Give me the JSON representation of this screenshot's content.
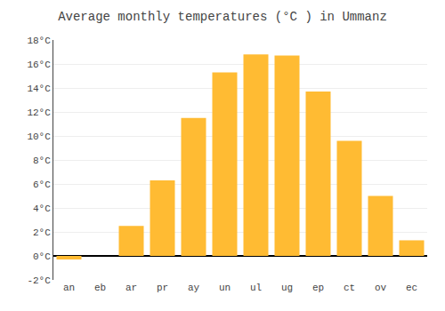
{
  "chart_data": {
    "type": "bar",
    "title": "Average monthly temperatures (°C ) in Ummanz",
    "categories": [
      "an",
      "eb",
      "ar",
      "pr",
      "ay",
      "un",
      "ul",
      "ug",
      "ep",
      "ct",
      "ov",
      "ec"
    ],
    "values": [
      -0.3,
      0.0,
      2.5,
      6.3,
      11.5,
      15.3,
      16.8,
      16.7,
      13.7,
      9.6,
      5.0,
      1.3
    ],
    "color": "#FFBB33",
    "ylim": [
      -2,
      18
    ],
    "yticks": [
      {
        "value": -2,
        "label": "-2°C"
      },
      {
        "value": 0,
        "label": "0°C"
      },
      {
        "value": 2,
        "label": "2°C"
      },
      {
        "value": 4,
        "label": "4°C"
      },
      {
        "value": 6,
        "label": "6°C"
      },
      {
        "value": 8,
        "label": "8°C"
      },
      {
        "value": 10,
        "label": "10°C"
      },
      {
        "value": 12,
        "label": "12°C"
      },
      {
        "value": 14,
        "label": "14°C"
      },
      {
        "value": 16,
        "label": "16°C"
      },
      {
        "value": 18,
        "label": "18°C"
      }
    ],
    "grid": true
  }
}
